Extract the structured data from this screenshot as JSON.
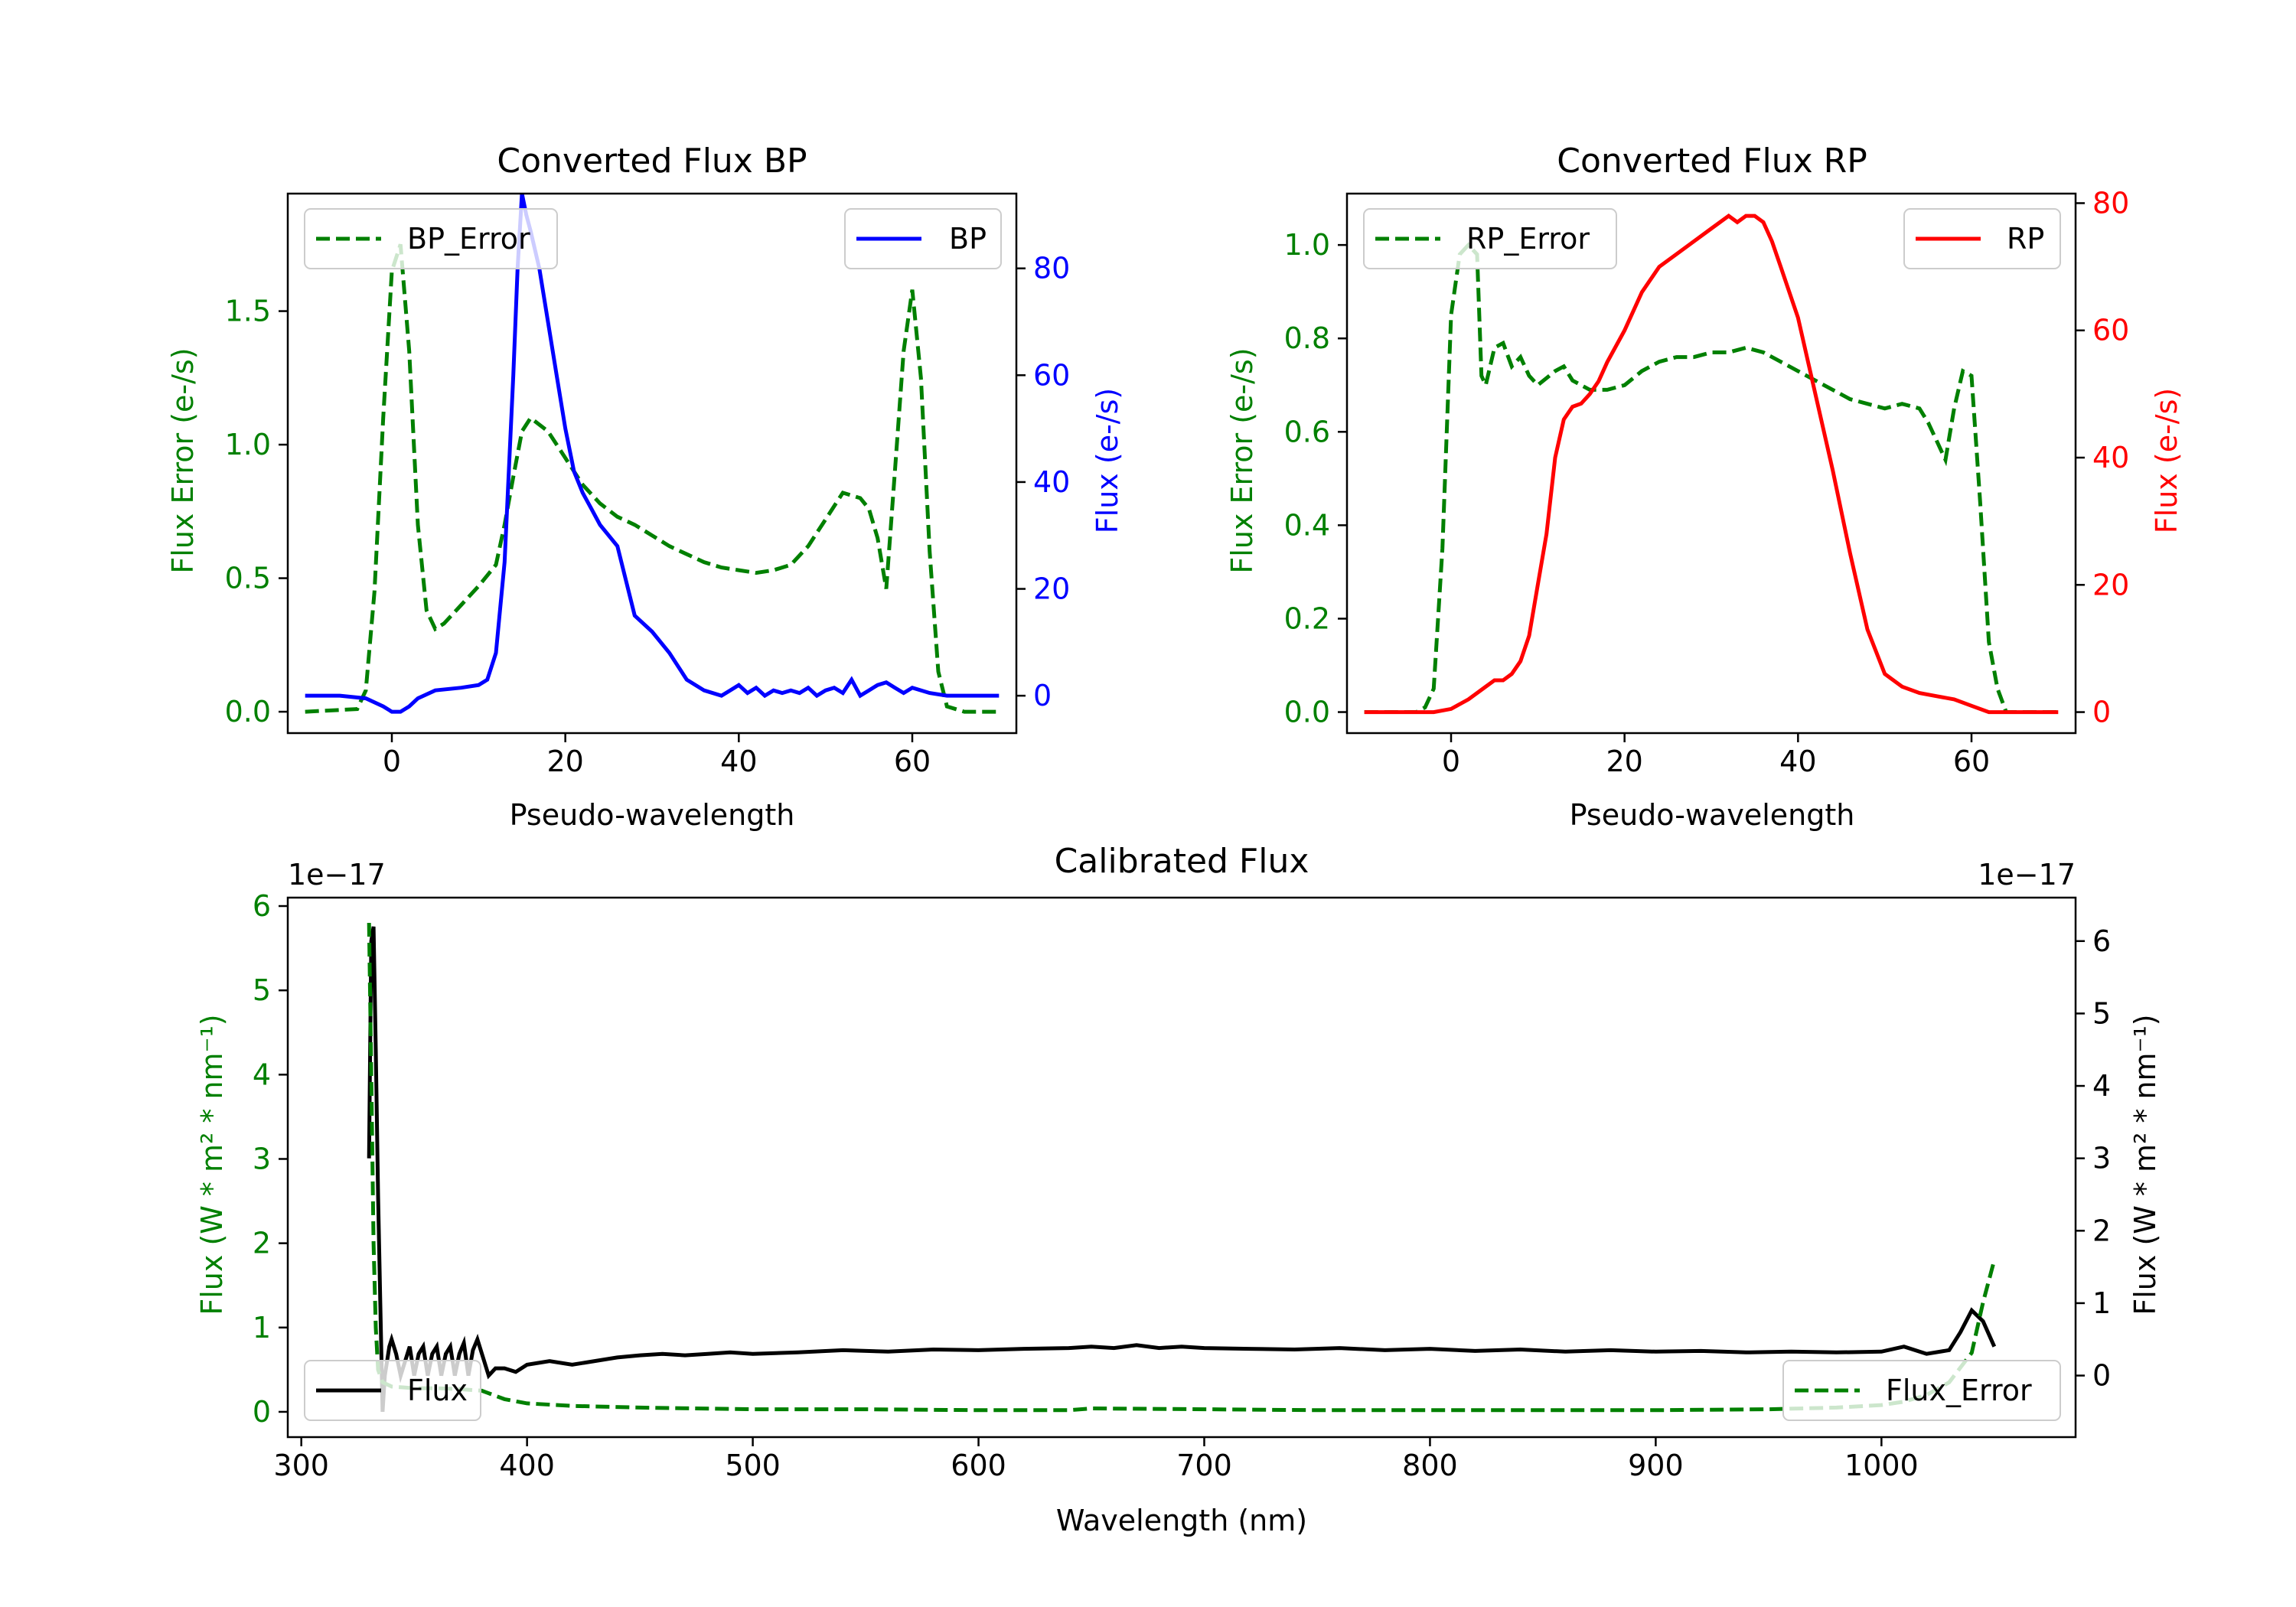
{
  "chart_data": [
    {
      "type": "line",
      "title": "Converted Flux BP",
      "xlabel": "Pseudo-wavelength",
      "ylabel_left": "Flux Error (e-/s)",
      "ylabel_right": "Flux (e-/s)",
      "xlim": [
        -12,
        72
      ],
      "ylim_left": [
        -0.08,
        1.94
      ],
      "ylim_right": [
        -7,
        94
      ],
      "xticks": [
        "0",
        "20",
        "40",
        "60"
      ],
      "yticks_left": [
        "0.0",
        "0.5",
        "1.0",
        "1.5"
      ],
      "yticks_right": [
        "0",
        "20",
        "40",
        "60",
        "80"
      ],
      "colors": {
        "error": "#008000",
        "flux": "#0000ff"
      },
      "series": [
        {
          "name": "BP_Error",
          "axis": "left",
          "style": "dashed",
          "x": [
            -10,
            -4,
            -3,
            -2,
            -1,
            0,
            1,
            2,
            3,
            4,
            5,
            6,
            8,
            10,
            12,
            13,
            14,
            15,
            16,
            18,
            20,
            22,
            24,
            26,
            28,
            30,
            32,
            34,
            36,
            38,
            40,
            42,
            44,
            46,
            48,
            50,
            52,
            54,
            55,
            56,
            57,
            58,
            59,
            60,
            61,
            62,
            63,
            64,
            66,
            70
          ],
          "y": [
            0.0,
            0.01,
            0.08,
            0.45,
            1.1,
            1.65,
            1.75,
            1.35,
            0.7,
            0.38,
            0.31,
            0.33,
            0.4,
            0.47,
            0.55,
            0.7,
            0.88,
            1.05,
            1.1,
            1.05,
            0.95,
            0.85,
            0.78,
            0.73,
            0.7,
            0.66,
            0.62,
            0.59,
            0.56,
            0.54,
            0.53,
            0.52,
            0.53,
            0.55,
            0.62,
            0.72,
            0.82,
            0.8,
            0.76,
            0.65,
            0.46,
            0.9,
            1.35,
            1.58,
            1.25,
            0.6,
            0.15,
            0.02,
            0.0,
            0.0
          ],
          "yticks_side": "left"
        },
        {
          "name": "BP",
          "axis": "right",
          "style": "solid",
          "x": [
            -10,
            -6,
            -3,
            -1,
            0,
            1,
            2,
            3,
            5,
            8,
            10,
            11,
            12,
            13,
            14,
            14.5,
            15,
            15.5,
            16,
            17,
            18,
            19,
            20,
            21,
            22,
            23,
            24,
            26,
            28,
            30,
            32,
            34,
            36,
            38,
            39,
            40,
            41,
            42,
            43,
            44,
            45,
            46,
            47,
            48,
            49,
            50,
            51,
            52,
            53,
            54,
            55,
            56,
            57,
            58,
            59,
            60,
            62,
            64,
            66,
            70
          ],
          "y": [
            0,
            0,
            -0.5,
            -2,
            -3,
            -3,
            -2,
            -0.5,
            1,
            1.5,
            2,
            3,
            8,
            25,
            60,
            80,
            94,
            90,
            87,
            80,
            70,
            60,
            50,
            42,
            38,
            35,
            32,
            28,
            15,
            12,
            8,
            3,
            1,
            0,
            1,
            2,
            0.5,
            1.5,
            0,
            1,
            0.5,
            1,
            0.5,
            1.5,
            0,
            1,
            1.5,
            0.5,
            3,
            0,
            1,
            2,
            2.5,
            1.5,
            0.5,
            1.5,
            0.5,
            0,
            0,
            0
          ]
        }
      ],
      "legend": [
        "BP_Error",
        "BP"
      ]
    },
    {
      "type": "line",
      "title": "Converted Flux RP",
      "xlabel": "Pseudo-wavelength",
      "ylabel_left": "Flux Error (e-/s)",
      "ylabel_right": "Flux (e-/s)",
      "xlim": [
        -12,
        72
      ],
      "ylim_left": [
        -0.045,
        1.11
      ],
      "ylim_right": [
        -3.3,
        81.5
      ],
      "xticks": [
        "0",
        "20",
        "40",
        "60"
      ],
      "yticks_left": [
        "0.0",
        "0.2",
        "0.4",
        "0.6",
        "0.8",
        "1.0"
      ],
      "yticks_right": [
        "0",
        "20",
        "40",
        "60",
        "80"
      ],
      "colors": {
        "error": "#008000",
        "flux": "#ff0000"
      },
      "series": [
        {
          "name": "RP_Error",
          "axis": "left",
          "style": "dashed",
          "x": [
            -10,
            -4,
            -3,
            -2,
            -1,
            0,
            1,
            2,
            3,
            3.5,
            4,
            5,
            6,
            7,
            8,
            9,
            10,
            12,
            13,
            14,
            16,
            18,
            20,
            22,
            24,
            26,
            28,
            30,
            32,
            34,
            36,
            38,
            40,
            42,
            44,
            46,
            48,
            50,
            52,
            54,
            55,
            56,
            57,
            58,
            59,
            60,
            61,
            62,
            63,
            64,
            66,
            70
          ],
          "y": [
            0.0,
            0.0,
            0.01,
            0.05,
            0.35,
            0.85,
            0.98,
            1.0,
            0.98,
            0.72,
            0.7,
            0.78,
            0.79,
            0.74,
            0.76,
            0.72,
            0.7,
            0.73,
            0.74,
            0.71,
            0.69,
            0.69,
            0.7,
            0.73,
            0.75,
            0.76,
            0.76,
            0.77,
            0.77,
            0.78,
            0.77,
            0.75,
            0.73,
            0.71,
            0.69,
            0.67,
            0.66,
            0.65,
            0.66,
            0.65,
            0.62,
            0.58,
            0.54,
            0.65,
            0.73,
            0.72,
            0.45,
            0.15,
            0.05,
            0.0,
            0.0,
            0.0
          ],
          "yticks_side": "left"
        },
        {
          "name": "RP",
          "axis": "right",
          "style": "solid",
          "x": [
            -10,
            -5,
            -2,
            0,
            2,
            4,
            5,
            6,
            7,
            8,
            9,
            10,
            11,
            12,
            13,
            14,
            15,
            16,
            17,
            18,
            20,
            22,
            24,
            26,
            28,
            30,
            32,
            33,
            34,
            35,
            36,
            37,
            38,
            40,
            42,
            44,
            46,
            48,
            50,
            52,
            54,
            56,
            58,
            60,
            62,
            64,
            66,
            70
          ],
          "y": [
            0,
            0,
            0,
            0.5,
            2,
            4,
            5,
            5,
            6,
            8,
            12,
            20,
            28,
            40,
            46,
            48,
            48.5,
            50,
            52,
            55,
            60,
            66,
            70,
            72,
            74,
            76,
            78,
            77,
            78,
            78,
            77,
            74,
            70,
            62,
            50,
            38,
            25,
            13,
            6,
            4,
            3,
            2.5,
            2,
            1,
            0,
            0,
            0,
            0
          ]
        }
      ],
      "legend": [
        "RP_Error",
        "RP"
      ]
    },
    {
      "type": "line",
      "title": "Calibrated Flux",
      "xlabel": "Wavelength (nm)",
      "ylabel_left": "Flux (W * m² * nm⁻¹)",
      "ylabel_right": "Flux (W * m² * nm⁻¹)",
      "offset_left": "1e−17",
      "offset_right": "1e−17",
      "xlim": [
        294,
        1086
      ],
      "ylim_left": [
        -0.3,
        6.1
      ],
      "ylim_right": [
        -0.85,
        6.6
      ],
      "xticks": [
        "300",
        "400",
        "500",
        "600",
        "700",
        "800",
        "900",
        "1000"
      ],
      "yticks_left": [
        "0",
        "1",
        "2",
        "3",
        "4",
        "5",
        "6"
      ],
      "yticks_right": [
        "0",
        "1",
        "2",
        "3",
        "4",
        "5",
        "6"
      ],
      "colors": {
        "error": "#008000",
        "flux": "#000000"
      },
      "series": [
        {
          "name": "Flux",
          "axis": "right",
          "style": "solid",
          "x": [
            330,
            331,
            332,
            333,
            334,
            335,
            336,
            337,
            338,
            339,
            340,
            342,
            344,
            346,
            348,
            350,
            352,
            354,
            356,
            358,
            360,
            362,
            364,
            366,
            368,
            370,
            372,
            374,
            376,
            378,
            380,
            383,
            386,
            390,
            395,
            400,
            410,
            420,
            430,
            440,
            450,
            460,
            470,
            480,
            490,
            500,
            520,
            540,
            560,
            580,
            600,
            620,
            640,
            650,
            660,
            670,
            680,
            690,
            700,
            720,
            740,
            760,
            780,
            800,
            820,
            840,
            860,
            880,
            900,
            920,
            940,
            960,
            980,
            1000,
            1010,
            1020,
            1030,
            1035,
            1040,
            1045,
            1050
          ],
          "y": [
            3.0,
            6.0,
            6.2,
            4.5,
            2.5,
            1.0,
            -0.5,
            0.0,
            0.2,
            0.4,
            0.5,
            0.3,
            0.0,
            0.2,
            0.4,
            0.0,
            0.3,
            0.4,
            0.0,
            0.3,
            0.4,
            0.0,
            0.3,
            0.4,
            0.0,
            0.3,
            0.45,
            0.0,
            0.35,
            0.5,
            0.3,
            0.0,
            0.1,
            0.1,
            0.05,
            0.15,
            0.2,
            0.15,
            0.2,
            0.25,
            0.28,
            0.3,
            0.28,
            0.3,
            0.32,
            0.3,
            0.32,
            0.35,
            0.33,
            0.36,
            0.35,
            0.37,
            0.38,
            0.4,
            0.38,
            0.42,
            0.38,
            0.4,
            0.38,
            0.37,
            0.36,
            0.38,
            0.35,
            0.37,
            0.34,
            0.36,
            0.33,
            0.35,
            0.33,
            0.34,
            0.32,
            0.33,
            0.32,
            0.33,
            0.4,
            0.3,
            0.35,
            0.6,
            0.9,
            0.75,
            0.4
          ]
        },
        {
          "name": "Flux_Error",
          "axis": "left",
          "style": "dashed",
          "x": [
            330,
            331,
            332,
            333,
            334,
            336,
            340,
            350,
            360,
            370,
            380,
            390,
            400,
            420,
            450,
            500,
            550,
            600,
            640,
            650,
            700,
            750,
            800,
            850,
            900,
            950,
            980,
            1000,
            1010,
            1020,
            1030,
            1040,
            1045,
            1050
          ],
          "y": [
            5.8,
            4.0,
            2.0,
            1.0,
            0.5,
            0.35,
            0.3,
            0.28,
            0.28,
            0.27,
            0.25,
            0.15,
            0.1,
            0.07,
            0.05,
            0.03,
            0.03,
            0.02,
            0.02,
            0.04,
            0.03,
            0.02,
            0.02,
            0.02,
            0.02,
            0.03,
            0.05,
            0.08,
            0.12,
            0.2,
            0.35,
            0.7,
            1.3,
            1.8
          ]
        }
      ],
      "legend": [
        "Flux",
        "Flux_Error"
      ]
    }
  ]
}
